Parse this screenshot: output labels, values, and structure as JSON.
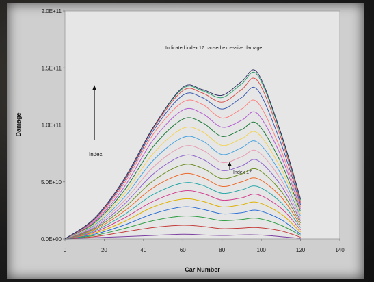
{
  "chart_data": {
    "type": "line",
    "title": "",
    "xlabel": "Car Number",
    "ylabel": "Damage",
    "xlim": [
      0,
      140
    ],
    "ylim": [
      0,
      200000000000
    ],
    "x_ticks": [
      "0",
      "20",
      "40",
      "60",
      "80",
      "100",
      "120",
      "140"
    ],
    "y_ticks": [
      "0.0E+00",
      "5.0E+10",
      "1.0E+11",
      "1.5E+11",
      "2.0E+11"
    ],
    "annotations": [
      "Indicated index 17 caused excessive damage",
      "Index",
      "Index 17"
    ],
    "grid": false,
    "legend": "none",
    "x": [
      0,
      15,
      30,
      45,
      60,
      70,
      80,
      90,
      98,
      110,
      120
    ],
    "series": [
      {
        "values": [
          0,
          1000000000,
          2000000000,
          3000000000,
          4000000000,
          3500000000,
          3000000000,
          3500000000,
          3500000000,
          2000000000,
          500000000
        ]
      },
      {
        "values": [
          0,
          2000000000,
          6000000000,
          10000000000,
          12000000000,
          11000000000,
          9000000000,
          9500000000,
          10000000000,
          7000000000,
          1500000000
        ]
      },
      {
        "values": [
          0,
          3000000000,
          9000000000,
          16000000000,
          20000000000,
          19000000000,
          16000000000,
          17000000000,
          18000000000,
          12000000000,
          3000000000
        ]
      },
      {
        "values": [
          0,
          4000000000,
          12000000000,
          22000000000,
          28000000000,
          26000000000,
          22000000000,
          23000000000,
          25000000000,
          17000000000,
          4000000000
        ]
      },
      {
        "values": [
          0,
          5000000000,
          15000000000,
          28000000000,
          35000000000,
          33000000000,
          28000000000,
          30000000000,
          32000000000,
          22000000000,
          6000000000
        ]
      },
      {
        "values": [
          0,
          6000000000,
          18000000000,
          33000000000,
          42000000000,
          40000000000,
          34000000000,
          36000000000,
          39000000000,
          27000000000,
          8000000000
        ]
      },
      {
        "values": [
          0,
          7000000000,
          21000000000,
          39000000000,
          49000000000,
          47000000000,
          40000000000,
          43000000000,
          46000000000,
          32000000000,
          10000000000
        ]
      },
      {
        "values": [
          0,
          8000000000,
          24000000000,
          45000000000,
          57000000000,
          54000000000,
          46000000000,
          50000000000,
          53000000000,
          37000000000,
          12000000000
        ]
      },
      {
        "values": [
          0,
          9000000000,
          27000000000,
          51000000000,
          65000000000,
          62000000000,
          53000000000,
          57000000000,
          61000000000,
          42000000000,
          14000000000
        ]
      },
      {
        "values": [
          0,
          10000000000,
          30000000000,
          57000000000,
          73000000000,
          70000000000,
          60000000000,
          64000000000,
          69000000000,
          47000000000,
          16000000000
        ]
      },
      {
        "values": [
          0,
          11000000000,
          33000000000,
          63000000000,
          81000000000,
          78000000000,
          67000000000,
          72000000000,
          77000000000,
          52000000000,
          18000000000
        ]
      },
      {
        "values": [
          0,
          12000000000,
          36000000000,
          69000000000,
          89000000000,
          86000000000,
          74000000000,
          80000000000,
          85000000000,
          57000000000,
          20000000000
        ]
      },
      {
        "values": [
          0,
          13000000000,
          39000000000,
          75000000000,
          97000000000,
          94000000000,
          82000000000,
          88000000000,
          93000000000,
          62000000000,
          22000000000
        ]
      },
      {
        "values": [
          0,
          14000000000,
          42000000000,
          81000000000,
          105000000000,
          102000000000,
          90000000000,
          96000000000,
          101000000000,
          67000000000,
          24000000000
        ]
      },
      {
        "values": [
          0,
          15000000000,
          45000000000,
          87000000000,
          113000000000,
          110000000000,
          98000000000,
          104000000000,
          110000000000,
          73000000000,
          26000000000
        ]
      },
      {
        "values": [
          0,
          16000000000,
          48000000000,
          92000000000,
          120000000000,
          118000000000,
          106000000000,
          114000000000,
          120000000000,
          78000000000,
          28000000000
        ]
      },
      {
        "values": [
          0,
          17000000000,
          50000000000,
          95000000000,
          126000000000,
          124000000000,
          114000000000,
          124000000000,
          131000000000,
          84000000000,
          30000000000
        ]
      },
      {
        "values": [
          0,
          17500000000,
          51000000000,
          97000000000,
          130000000000,
          128000000000,
          120000000000,
          131000000000,
          139000000000,
          89000000000,
          32000000000
        ]
      },
      {
        "values": [
          0,
          18000000000,
          52000000000,
          98000000000,
          132000000000,
          130000000000,
          124000000000,
          136000000000,
          144000000000,
          92000000000,
          34000000000
        ]
      },
      {
        "values": [
          0,
          18000000000,
          52000000000,
          98000000000,
          133000000000,
          131000000000,
          126000000000,
          138000000000,
          146000000000,
          93000000000,
          35000000000
        ]
      }
    ],
    "colors": [
      "#7b3fa0",
      "#c43a3a",
      "#2f9e44",
      "#2b6fd6",
      "#e0b000",
      "#d23f8f",
      "#2aa8a8",
      "#ee6a2a",
      "#6b8e23",
      "#9063cd",
      "#e5a0b5",
      "#4aa3df",
      "#f1d35c",
      "#1e7a3a",
      "#b35bd1",
      "#ff7f7f",
      "#3c5bb0",
      "#d9534f",
      "#2f9e6f",
      "#333366"
    ]
  }
}
